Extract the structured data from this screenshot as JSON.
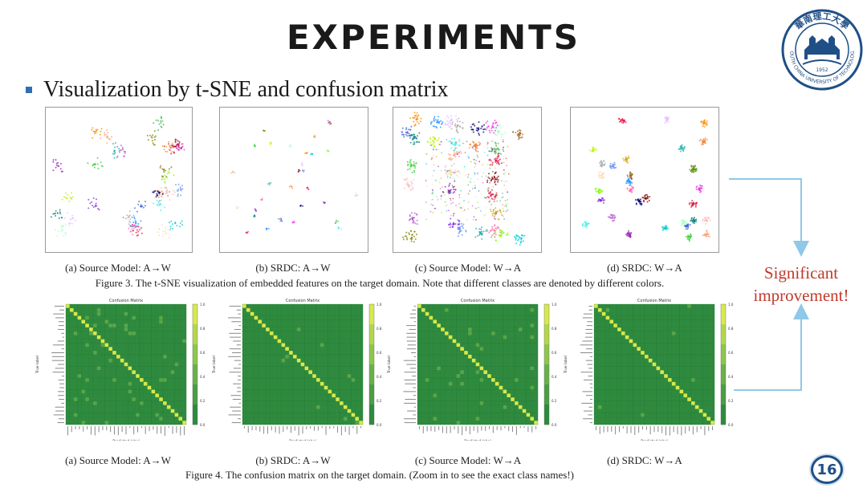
{
  "slide": {
    "title": "EXPERIMENTS",
    "subtitle": "Visualization by t-SNE and confusion matrix",
    "page_number": "16",
    "accent_color": "#2f6fb3",
    "highlight_color": "#c0392b"
  },
  "logo": {
    "icon": "university-seal-icon",
    "top_text": "華南理工大學",
    "bottom_text": "SOUTH CHINA UNIVERSITY OF TECHNOLOGY",
    "year": "1952"
  },
  "tsne_panels": [
    {
      "caption": "(a) Source Model: A→W"
    },
    {
      "caption": "(b) SRDC: A→W"
    },
    {
      "caption": "(c) Source Model: W→A"
    },
    {
      "caption": "(d) SRDC: W→A"
    }
  ],
  "figure3_caption": "Figure 3. The t-SNE visualization of embedded features on the target domain. Note that different classes are denoted by different colors.",
  "confusion_panels": [
    {
      "caption": "(a) Source Model: A→W"
    },
    {
      "caption": "(b) SRDC: A→W"
    },
    {
      "caption": "(c) Source Model: W→A"
    },
    {
      "caption": "(d) SRDC: W→A"
    }
  ],
  "figure4_caption": "Figure 4. The confusion matrix on the target domain. (Zoom in to see the exact class names!)",
  "chart_data": [
    {
      "type": "heatmap",
      "title": "Confusion Matrix",
      "xlabel": "Predicted label",
      "ylabel": "True label",
      "colorbar_ticks": [
        "0.0",
        "0.2",
        "0.4",
        "0.6",
        "0.8",
        "1.0"
      ]
    }
  ],
  "callout": {
    "text_line1": "Significant",
    "text_line2": "improvement!"
  }
}
